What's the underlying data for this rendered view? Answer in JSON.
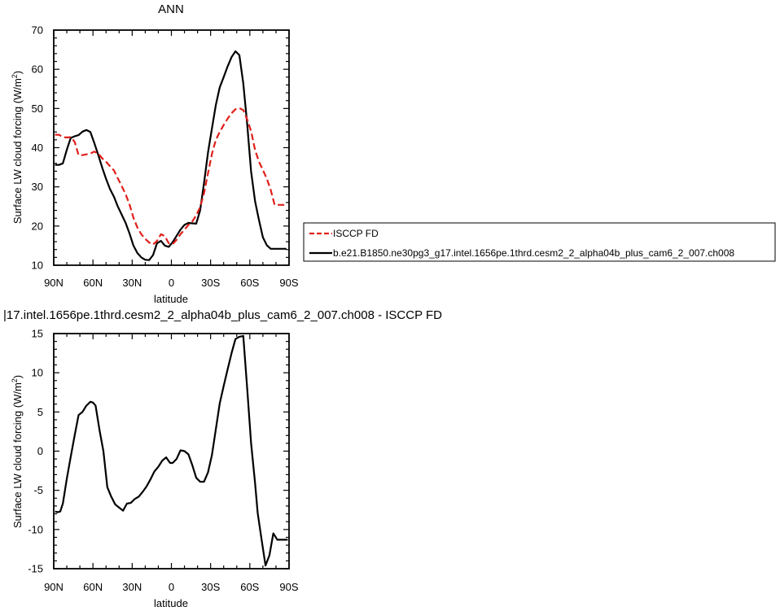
{
  "chart_data": [
    {
      "type": "line",
      "title": "ANN",
      "xlabel": "latitude",
      "ylabel": "Surface LW cloud forcing (W/m",
      "ylabel_sup": "2",
      "ylabel_tail": ")",
      "xlim": [
        90,
        -90
      ],
      "ylim": [
        10,
        70
      ],
      "xticks": [
        90,
        60,
        30,
        0,
        -30,
        -60,
        -90
      ],
      "xtick_labels": [
        "90N",
        "60N",
        "30N",
        "0",
        "30S",
        "60S",
        "90S"
      ],
      "yticks": [
        10,
        20,
        30,
        40,
        50,
        60,
        70
      ],
      "ytick_labels": [
        "10",
        "20",
        "30",
        "40",
        "50",
        "60",
        "70"
      ],
      "legend_position": "right",
      "x": [
        89,
        86,
        83,
        80,
        77,
        74,
        71,
        68,
        65,
        62,
        59,
        56,
        53,
        50,
        47,
        44,
        41,
        38,
        35,
        32,
        29,
        26,
        23,
        20,
        17,
        14,
        11,
        8,
        5,
        2,
        -1,
        -4,
        -7,
        -10,
        -13,
        -16,
        -19,
        -22,
        -25,
        -28,
        -31,
        -34,
        -37,
        -40,
        -43,
        -46,
        -49,
        -52,
        -55,
        -58,
        -61,
        -64,
        -67,
        -70,
        -73,
        -76,
        -79,
        -82,
        -85,
        -88
      ],
      "series": [
        {
          "name": "ISCCP FD",
          "color": "#e0201b",
          "dash": "dashed",
          "values": [
            43.3,
            43.3,
            42.7,
            42.6,
            42.7,
            41.5,
            38.1,
            38.1,
            38.3,
            38.5,
            39.0,
            38.5,
            37.3,
            36.4,
            35.3,
            34.2,
            32.2,
            30.2,
            28.1,
            25.5,
            22.1,
            19.6,
            17.9,
            16.7,
            15.8,
            15.3,
            16.2,
            17.9,
            17.4,
            15.6,
            15.4,
            16.5,
            17.9,
            19.1,
            20.3,
            21.2,
            22.7,
            24.8,
            28.4,
            33.5,
            38.4,
            42.0,
            44.0,
            45.8,
            47.4,
            48.8,
            49.8,
            50.1,
            49.6,
            47.2,
            44.2,
            39.4,
            36.4,
            34.3,
            32.1,
            29.2,
            25.4,
            25.4,
            25.4,
            25.4
          ]
        },
        {
          "name": "b.e21.B1850.ne30pg3_g17.intel.1656pe.1thrd.cesm2_2_alpha04b_plus_cam6_2_007.ch008",
          "color": "#000000",
          "dash": "solid",
          "values": [
            35.6,
            35.6,
            36.0,
            39.5,
            42.5,
            42.9,
            43.2,
            44.1,
            44.5,
            44.0,
            41.2,
            38.2,
            35.0,
            32.1,
            29.5,
            27.5,
            25.0,
            22.9,
            20.8,
            18.1,
            15.0,
            13.1,
            12.0,
            11.4,
            11.3,
            12.6,
            15.6,
            16.2,
            15.0,
            14.7,
            15.9,
            17.5,
            19.1,
            20.3,
            20.8,
            20.7,
            20.6,
            24.0,
            31.0,
            38.8,
            44.9,
            50.9,
            55.4,
            58.0,
            60.7,
            63.1,
            64.6,
            63.6,
            56.4,
            46.0,
            33.9,
            26.3,
            21.5,
            17.1,
            15.1,
            14.2,
            14.2,
            14.2,
            14.2,
            14.2
          ]
        }
      ]
    },
    {
      "type": "line",
      "title": "|17.intel.1656pe.1thrd.cesm2_2_alpha04b_plus_cam6_2_007.ch008 - ISCCP FD",
      "xlabel": "latitude",
      "ylabel": "Surface LW cloud forcing (W/m",
      "ylabel_sup": "2",
      "ylabel_tail": ")",
      "xlim": [
        90,
        -90
      ],
      "ylim": [
        -15,
        15
      ],
      "xticks": [
        90,
        60,
        30,
        0,
        -30,
        -60,
        -90
      ],
      "xtick_labels": [
        "90N",
        "60N",
        "30N",
        "0",
        "30S",
        "60S",
        "90S"
      ],
      "yticks": [
        -15,
        -10,
        -5,
        0,
        5,
        10,
        15
      ],
      "ytick_labels": [
        "-15",
        "-10",
        "-5",
        "0",
        "5",
        "10",
        "15"
      ],
      "x": [
        89,
        87,
        85,
        83,
        80,
        77,
        74,
        71,
        68,
        65,
        62,
        60,
        58,
        55,
        52,
        49,
        46,
        43,
        40,
        37,
        34,
        31,
        28,
        25,
        22,
        19,
        16,
        13,
        10,
        7,
        4,
        1,
        -1,
        -4,
        -7,
        -10,
        -13,
        -16,
        -19,
        -22,
        -25,
        -28,
        -31,
        -34,
        -37,
        -40,
        -43,
        -46,
        -49,
        -52,
        -55,
        -58,
        -61,
        -64,
        -66,
        -69,
        -72,
        -75,
        -78,
        -81,
        -84,
        -87,
        -89
      ],
      "series": [
        {
          "name": "",
          "color": "#000000",
          "dash": "solid",
          "values": [
            -7.7,
            -7.8,
            -7.7,
            -6.7,
            -3.5,
            -0.7,
            2.0,
            4.6,
            5.0,
            5.8,
            6.3,
            6.2,
            5.8,
            2.7,
            0.0,
            -4.6,
            -5.8,
            -6.8,
            -7.2,
            -7.6,
            -6.7,
            -6.6,
            -6.1,
            -5.8,
            -5.2,
            -4.5,
            -3.6,
            -2.6,
            -2.0,
            -1.2,
            -0.8,
            -1.5,
            -1.5,
            -1.0,
            0.1,
            0.0,
            -0.4,
            -1.8,
            -3.4,
            -3.9,
            -3.9,
            -2.7,
            -0.5,
            2.8,
            6.1,
            8.3,
            10.4,
            12.5,
            14.3,
            14.6,
            14.7,
            8.0,
            1.0,
            -4.1,
            -7.9,
            -11.3,
            -14.6,
            -13.3,
            -10.5,
            -11.3,
            -11.3,
            -11.3,
            -11.3
          ]
        }
      ]
    }
  ]
}
